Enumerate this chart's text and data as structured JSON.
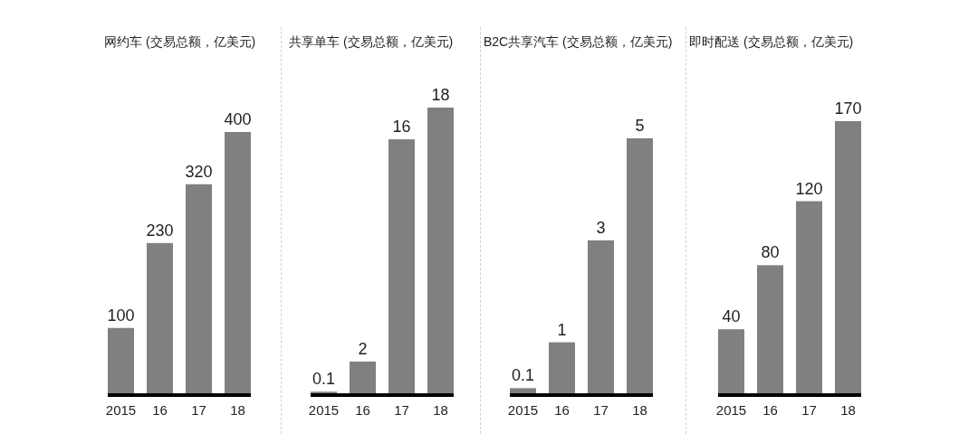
{
  "chart_data": [
    {
      "type": "bar",
      "title": "网约车 (交易总额，亿美元)",
      "categories": [
        "2015",
        "16",
        "17",
        "18"
      ],
      "values": [
        100,
        230,
        320,
        400
      ],
      "color": "#808080",
      "data_labels": true
    },
    {
      "type": "bar",
      "title": "共享单车 (交易总额，亿美元)",
      "categories": [
        "2015",
        "16",
        "17",
        "18"
      ],
      "values": [
        0.1,
        2,
        16,
        18
      ],
      "color": "#808080",
      "data_labels": true
    },
    {
      "type": "bar",
      "title": "B2C共享汽车 (交易总额，亿美元)",
      "categories": [
        "2015",
        "16",
        "17",
        "18"
      ],
      "values": [
        0.1,
        1,
        3,
        5
      ],
      "color": "#808080",
      "data_labels": true
    },
    {
      "type": "bar",
      "title": "即时配送 (交易总额，亿美元)",
      "categories": [
        "2015",
        "16",
        "17",
        "18"
      ],
      "values": [
        40,
        80,
        120,
        170
      ],
      "color": "#808080",
      "data_labels": true
    }
  ]
}
